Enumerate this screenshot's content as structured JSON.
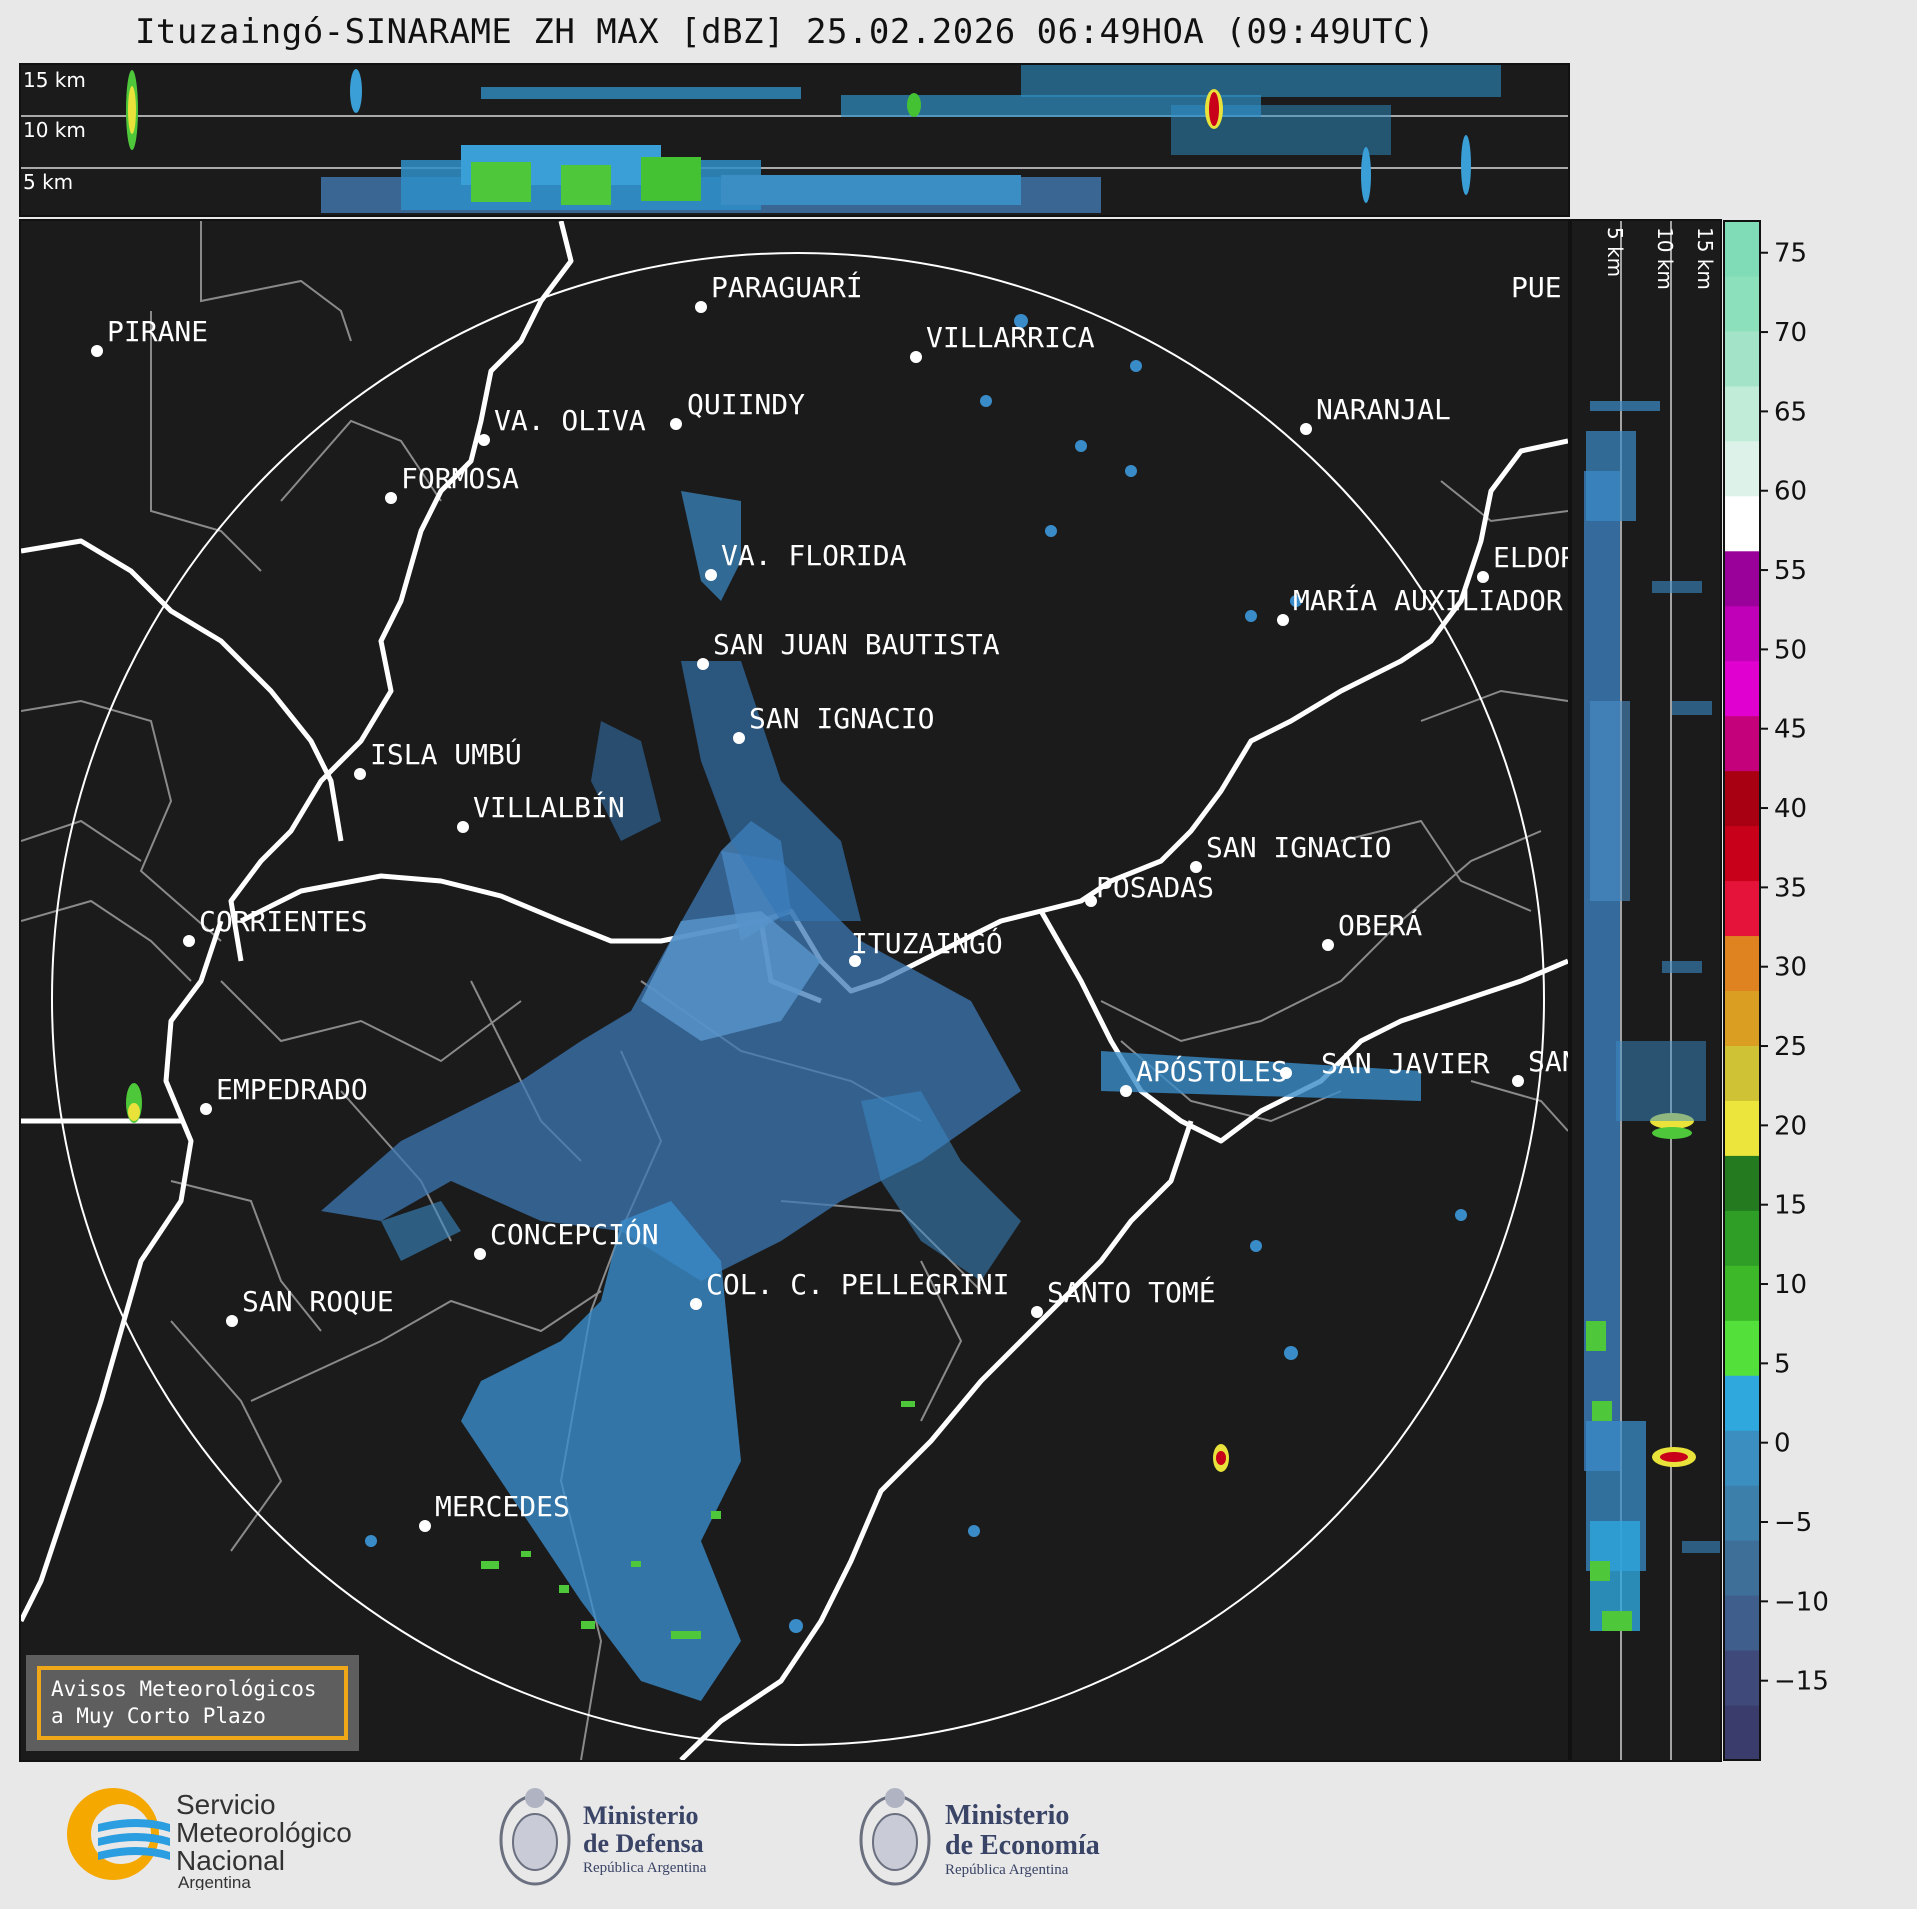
{
  "title": "Ituzaingó-SINARAME ZH MAX [dBZ] 25.02.2026 06:49HOA (09:49UTC)",
  "top_panel": {
    "height_labels": [
      "15 km",
      "10 km",
      "5 km"
    ]
  },
  "side_panel": {
    "height_labels": [
      "5 km",
      "10 km",
      "15 km"
    ]
  },
  "colorbar": {
    "unit": "dBZ",
    "ticks": [
      "75",
      "70",
      "65",
      "60",
      "55",
      "50",
      "45",
      "40",
      "35",
      "30",
      "25",
      "20",
      "15",
      "10",
      "5",
      "0",
      "−5",
      "−10",
      "−15"
    ],
    "range": [
      -20,
      77
    ],
    "colors": [
      "#3a3d6b",
      "#3f4a7a",
      "#3f5e8c",
      "#3e6f99",
      "#3d7fab",
      "#3a8fc0",
      "#2ea8dd",
      "#53e03a",
      "#3cb829",
      "#2f9e27",
      "#237a1f",
      "#ece53c",
      "#cfc235",
      "#d99e22",
      "#de8320",
      "#e5123a",
      "#c8001a",
      "#a80012",
      "#c4007a",
      "#e000d0",
      "#c000b8",
      "#9a009a",
      "#ffffff",
      "#ddf3ea",
      "#c0ecd8",
      "#a3e4c8",
      "#8ce0bc",
      "#80dcb6"
    ]
  },
  "map": {
    "radar_site": "ITUZAINGÓ",
    "cities": [
      {
        "name": "PIRANE"
      },
      {
        "name": "PARAGUARÍ"
      },
      {
        "name": "VILLARRICA"
      },
      {
        "name": "QUIINDY"
      },
      {
        "name": "VA. OLIVA"
      },
      {
        "name": "FORMOSA"
      },
      {
        "name": "NARANJAL"
      },
      {
        "name": "VA. FLORIDA"
      },
      {
        "name": "ELDOR"
      },
      {
        "name": "MARÍA AUXILIADOR"
      },
      {
        "name": "SAN JUAN BAUTISTA"
      },
      {
        "name": "SAN IGNACIO"
      },
      {
        "name": "ISLA UMBÚ"
      },
      {
        "name": "VILLALBÍN"
      },
      {
        "name": "SAN IGNACIO"
      },
      {
        "name": "POSADAS"
      },
      {
        "name": "CORRIENTES"
      },
      {
        "name": "OBERÁ"
      },
      {
        "name": "ITUZAINGÓ"
      },
      {
        "name": "APÓSTOLES"
      },
      {
        "name": "SAN JAVIER"
      },
      {
        "name": "SAN"
      },
      {
        "name": "EMPEDRADO"
      },
      {
        "name": "CONCEPCIÓN"
      },
      {
        "name": "COL. C. PELLEGRINI"
      },
      {
        "name": "SANTO TOMÉ"
      },
      {
        "name": "SAN ROQUE"
      },
      {
        "name": "MERCEDES"
      },
      {
        "name": "PUE"
      }
    ]
  },
  "notice": {
    "line1": "Avisos Meteorológicos",
    "line2": "a Muy Corto Plazo"
  },
  "logos": {
    "smn": {
      "line1": "Servicio",
      "line2": "Meteorológico",
      "line3": "Nacional",
      "line4": "Argentina"
    },
    "defensa": {
      "line1": "Ministerio",
      "line2": "de Defensa",
      "line3": "República Argentina"
    },
    "economia": {
      "line1": "Ministerio",
      "line2": "de Economía",
      "line3": "República Argentina"
    }
  }
}
